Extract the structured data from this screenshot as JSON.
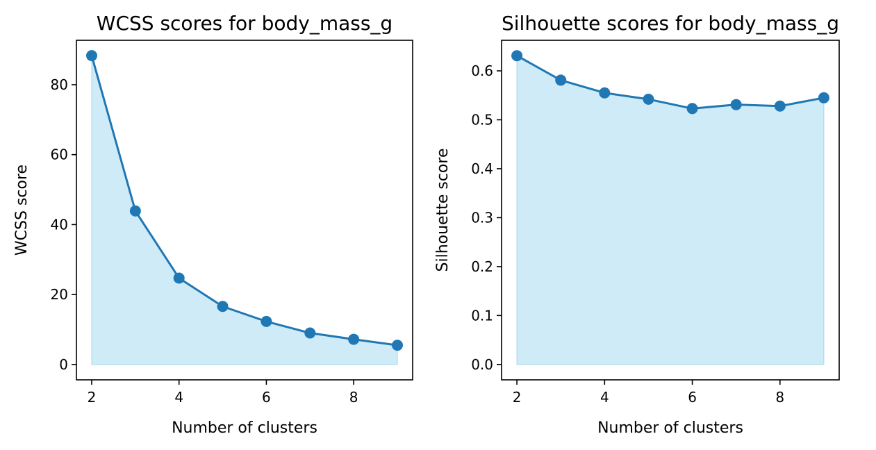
{
  "chart_data": [
    {
      "type": "line",
      "title": "WCSS scores for body_mass_g",
      "xlabel": "Number of clusters",
      "ylabel": "WCSS score",
      "x": [
        2,
        3,
        4,
        5,
        6,
        7,
        8,
        9
      ],
      "y": [
        88.3,
        43.9,
        24.7,
        16.6,
        12.3,
        9.0,
        7.2,
        5.5
      ],
      "xlim": [
        1.65,
        9.35
      ],
      "ylim": [
        -4.4,
        92.7
      ],
      "xticks": [
        2,
        4,
        6,
        8
      ],
      "yticks": [
        0,
        20,
        40,
        60,
        80
      ],
      "tick_decimals": 0,
      "line_color": "#1f77b4",
      "fill_color": "#87ceeb",
      "fill_to_zero": true,
      "markers": true,
      "grid": false
    },
    {
      "type": "line",
      "title": "Silhouette scores for body_mass_g",
      "xlabel": "Number of clusters",
      "ylabel": "Silhouette score",
      "x": [
        2,
        3,
        4,
        5,
        6,
        7,
        8,
        9
      ],
      "y": [
        0.631,
        0.581,
        0.555,
        0.542,
        0.523,
        0.531,
        0.528,
        0.545
      ],
      "xlim": [
        1.65,
        9.35
      ],
      "ylim": [
        -0.0315,
        0.6625
      ],
      "xticks": [
        2,
        4,
        6,
        8
      ],
      "yticks": [
        0.0,
        0.1,
        0.2,
        0.3,
        0.4,
        0.5,
        0.6
      ],
      "tick_decimals": 1,
      "line_color": "#1f77b4",
      "fill_color": "#87ceeb",
      "fill_to_zero": true,
      "markers": true,
      "grid": false
    }
  ]
}
